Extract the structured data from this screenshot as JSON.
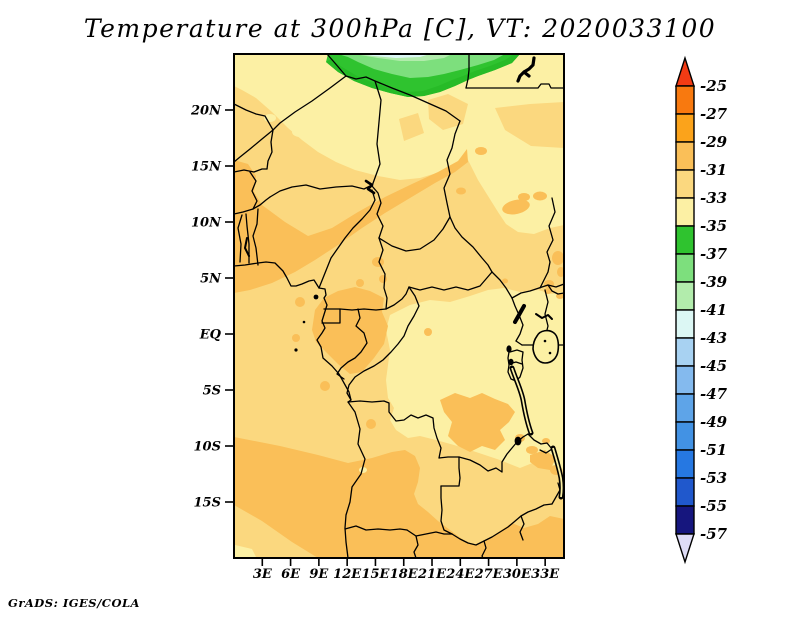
{
  "title": "Temperature at 300hPa [C], VT: 2020033100",
  "credit": "GrADS: IGES/COLA",
  "axes": {
    "lat_labels": [
      "20N",
      "15N",
      "10N",
      "5N",
      "EQ",
      "5S",
      "10S",
      "15S"
    ],
    "lon_labels": [
      "3E",
      "6E",
      "9E",
      "12E",
      "15E",
      "18E",
      "21E",
      "24E",
      "27E",
      "30E",
      "33E"
    ]
  },
  "colorbar": {
    "tick_labels": [
      "-25",
      "-27",
      "-29",
      "-31",
      "-33",
      "-35",
      "-37",
      "-39",
      "-41",
      "-43",
      "-45",
      "-47",
      "-49",
      "-51",
      "-53",
      "-55",
      "-57"
    ],
    "segment_colors": [
      "#f23b14",
      "#f8790f",
      "#fba31b",
      "#fabf58",
      "#fbd87f",
      "#fcf0a4",
      "#2fc32f",
      "#7ddf7d",
      "#b2ecac",
      "#dcf7f4",
      "#a8d2f2",
      "#84baee",
      "#5ea4e8",
      "#4292e4",
      "#2678e2",
      "#2058cc",
      "#16167e",
      "#dedcf6"
    ]
  },
  "shading": {
    "base": "#fbd87f",
    "pale_yellow": "#fcf0a4",
    "orange": "#fabf58",
    "green": "#2fc32f",
    "bright_green": "#27bb27",
    "light_green": "#7ddf7d",
    "pale_green": "#b2ecac",
    "pale_cyan": "#dcf7f4",
    "lake_fill": "#fcf0a4",
    "outline": "#000000"
  },
  "chart_data": {
    "type": "heatmap",
    "title": "Temperature at 300hPa [C], VT: 2020033100",
    "variable": "Temperature",
    "level": "300hPa",
    "units": "C",
    "valid_time": "2020033100",
    "x_tick_labels": [
      "3E",
      "6E",
      "9E",
      "12E",
      "15E",
      "18E",
      "21E",
      "24E",
      "27E",
      "30E",
      "33E"
    ],
    "y_tick_labels": [
      "20N",
      "15N",
      "10N",
      "5N",
      "EQ",
      "5S",
      "10S",
      "15S"
    ],
    "legend_levels": [
      -25,
      -27,
      -29,
      -31,
      -33,
      -35,
      -37,
      -39,
      -41,
      -43,
      -45,
      -47,
      -49,
      -51,
      -53,
      -55,
      -57
    ],
    "legend_position": "right",
    "legend_colors": [
      "#f23b14",
      "#f8790f",
      "#fba31b",
      "#fabf58",
      "#fbd87f",
      "#fcf0a4",
      "#2fc32f",
      "#7ddf7d",
      "#b2ecac",
      "#dcf7f4",
      "#a8d2f2",
      "#84baee",
      "#5ea4e8",
      "#4292e4",
      "#2678e2",
      "#2058cc",
      "#16167e",
      "#dedcf6"
    ]
  }
}
